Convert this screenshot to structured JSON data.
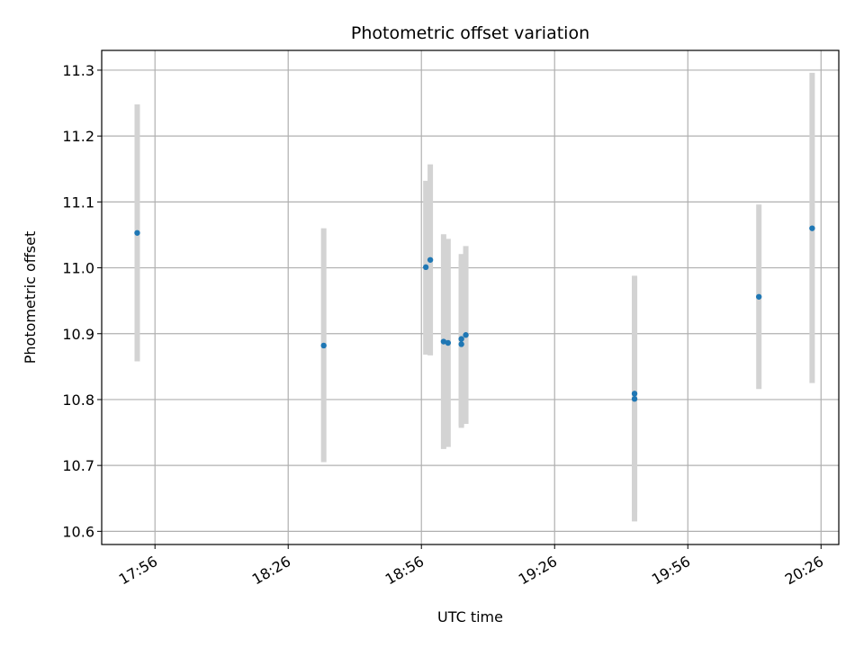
{
  "chart_data": {
    "type": "scatter",
    "title": "Photometric offset variation",
    "xlabel": "UTC time",
    "ylabel": "Photometric offset",
    "xlim": [
      "17:44",
      "20:30"
    ],
    "ylim": [
      10.58,
      11.33
    ],
    "x_ticks": [
      "17:56",
      "18:26",
      "18:56",
      "19:26",
      "19:56",
      "20:26"
    ],
    "y_ticks": [
      10.6,
      10.7,
      10.8,
      10.9,
      11.0,
      11.1,
      11.2,
      11.3
    ],
    "grid": true,
    "points": [
      {
        "x": "17:52",
        "y": 11.053,
        "ylow": 10.858,
        "yhigh": 11.248
      },
      {
        "x": "18:34",
        "y": 10.882,
        "ylow": 10.705,
        "yhigh": 11.06
      },
      {
        "x": "18:57",
        "y": 11.001,
        "ylow": 10.868,
        "yhigh": 11.132
      },
      {
        "x": "18:58",
        "y": 11.012,
        "ylow": 10.867,
        "yhigh": 11.157
      },
      {
        "x": "19:01",
        "y": 10.888,
        "ylow": 10.725,
        "yhigh": 11.051
      },
      {
        "x": "19:02",
        "y": 10.886,
        "ylow": 10.728,
        "yhigh": 11.044
      },
      {
        "x": "19:05",
        "y": 10.884,
        "ylow": 10.757,
        "yhigh": 11.011
      },
      {
        "x": "19:05",
        "y": 10.892,
        "ylow": 10.76,
        "yhigh": 11.021
      },
      {
        "x": "19:06",
        "y": 10.898,
        "ylow": 10.763,
        "yhigh": 11.033
      },
      {
        "x": "19:44",
        "y": 10.801,
        "ylow": 10.615,
        "yhigh": 10.986
      },
      {
        "x": "19:44",
        "y": 10.809,
        "ylow": 10.629,
        "yhigh": 10.988
      },
      {
        "x": "20:12",
        "y": 10.956,
        "ylow": 10.816,
        "yhigh": 11.096
      },
      {
        "x": "20:24",
        "y": 11.06,
        "ylow": 10.825,
        "yhigh": 11.296
      }
    ]
  }
}
